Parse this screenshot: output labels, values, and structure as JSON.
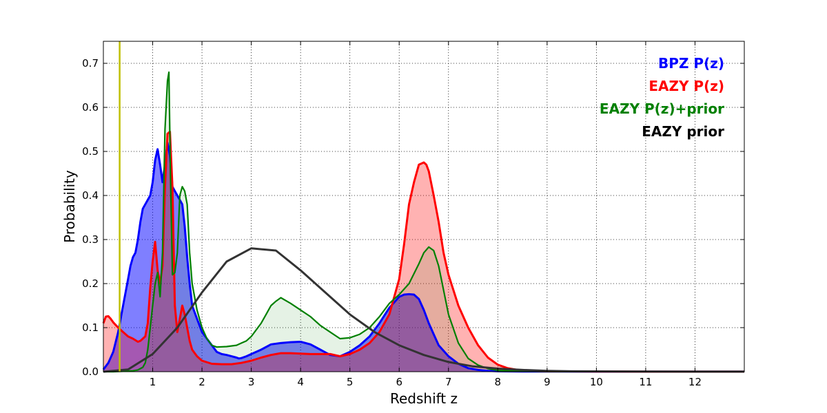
{
  "chart_data": {
    "type": "line",
    "title": "",
    "xlabel": "Redshift z",
    "ylabel": "Probability",
    "xlim": [
      0,
      13
    ],
    "ylim": [
      0,
      0.75
    ],
    "xticks": [
      1,
      2,
      3,
      4,
      5,
      6,
      7,
      8,
      9,
      10,
      11,
      12
    ],
    "xtick_labels": [
      "1",
      "2",
      "3",
      "4",
      "5",
      "6",
      "7",
      "8",
      "9",
      "10",
      "11",
      "12"
    ],
    "yticks": [
      0.0,
      0.1,
      0.2,
      0.3,
      0.4,
      0.5,
      0.6,
      0.7
    ],
    "ytick_labels": [
      "0.0",
      "0.1",
      "0.2",
      "0.3",
      "0.4",
      "0.5",
      "0.6",
      "0.7"
    ],
    "grid": true,
    "legend_position": "top-right",
    "vertical_line": {
      "x": 0.33,
      "color": "#bfbf00"
    },
    "series": [
      {
        "name": "BPZ P(z)",
        "color": "#0000ff",
        "fill": "rgba(0,0,255,0.5)",
        "filled": true,
        "x": [
          0.0,
          0.1,
          0.2,
          0.3,
          0.4,
          0.5,
          0.55,
          0.6,
          0.65,
          0.7,
          0.75,
          0.8,
          0.85,
          0.9,
          0.95,
          1.0,
          1.05,
          1.1,
          1.15,
          1.2,
          1.25,
          1.3,
          1.35,
          1.4,
          1.45,
          1.5,
          1.55,
          1.6,
          1.65,
          1.7,
          1.75,
          1.8,
          1.9,
          2.0,
          2.1,
          2.2,
          2.3,
          2.4,
          2.5,
          2.6,
          2.7,
          2.75,
          2.8,
          2.9,
          3.0,
          3.2,
          3.4,
          3.6,
          3.8,
          4.0,
          4.2,
          4.4,
          4.6,
          4.8,
          5.0,
          5.2,
          5.4,
          5.6,
          5.8,
          6.0,
          6.1,
          6.2,
          6.3,
          6.4,
          6.5,
          6.6,
          6.7,
          6.8,
          7.0,
          7.2,
          7.4,
          7.6,
          7.8,
          8.0,
          8.5,
          9.0,
          10.0,
          11.0,
          12.0,
          13.0
        ],
        "y": [
          0.005,
          0.02,
          0.045,
          0.09,
          0.15,
          0.21,
          0.24,
          0.26,
          0.27,
          0.3,
          0.34,
          0.37,
          0.38,
          0.39,
          0.4,
          0.43,
          0.48,
          0.505,
          0.47,
          0.43,
          0.47,
          0.52,
          0.49,
          0.42,
          0.41,
          0.4,
          0.39,
          0.38,
          0.33,
          0.26,
          0.2,
          0.15,
          0.12,
          0.09,
          0.075,
          0.06,
          0.045,
          0.04,
          0.038,
          0.035,
          0.032,
          0.03,
          0.031,
          0.035,
          0.04,
          0.05,
          0.062,
          0.065,
          0.067,
          0.068,
          0.062,
          0.05,
          0.038,
          0.035,
          0.045,
          0.06,
          0.08,
          0.11,
          0.145,
          0.17,
          0.175,
          0.176,
          0.175,
          0.165,
          0.14,
          0.11,
          0.085,
          0.06,
          0.035,
          0.018,
          0.008,
          0.004,
          0.002,
          0.001,
          0.0005,
          0.0003,
          0.0001,
          0.0001,
          0.0001,
          0.0001
        ]
      },
      {
        "name": "EAZY P(z)",
        "color": "#ff0000",
        "fill": "rgba(255,0,0,0.3)",
        "filled": true,
        "x": [
          0.0,
          0.05,
          0.1,
          0.15,
          0.2,
          0.3,
          0.4,
          0.5,
          0.6,
          0.7,
          0.75,
          0.8,
          0.85,
          0.9,
          0.95,
          1.0,
          1.05,
          1.1,
          1.15,
          1.2,
          1.25,
          1.3,
          1.35,
          1.4,
          1.45,
          1.5,
          1.55,
          1.6,
          1.65,
          1.7,
          1.75,
          1.8,
          1.9,
          2.0,
          2.2,
          2.4,
          2.6,
          2.8,
          3.0,
          3.2,
          3.4,
          3.6,
          3.8,
          4.0,
          4.2,
          4.4,
          4.6,
          4.8,
          5.0,
          5.2,
          5.4,
          5.6,
          5.8,
          6.0,
          6.1,
          6.2,
          6.3,
          6.4,
          6.5,
          6.55,
          6.6,
          6.7,
          6.8,
          6.9,
          7.0,
          7.2,
          7.4,
          7.6,
          7.8,
          8.0,
          8.2,
          8.4,
          8.6,
          9.0,
          10.0,
          11.0,
          12.0,
          13.0
        ],
        "y": [
          0.11,
          0.125,
          0.126,
          0.12,
          0.112,
          0.1,
          0.09,
          0.08,
          0.075,
          0.068,
          0.07,
          0.075,
          0.08,
          0.11,
          0.19,
          0.25,
          0.295,
          0.23,
          0.2,
          0.24,
          0.42,
          0.54,
          0.545,
          0.42,
          0.15,
          0.09,
          0.12,
          0.15,
          0.13,
          0.1,
          0.07,
          0.05,
          0.035,
          0.025,
          0.018,
          0.017,
          0.017,
          0.02,
          0.025,
          0.032,
          0.038,
          0.042,
          0.042,
          0.041,
          0.04,
          0.04,
          0.04,
          0.035,
          0.04,
          0.05,
          0.065,
          0.09,
          0.13,
          0.21,
          0.29,
          0.38,
          0.43,
          0.47,
          0.475,
          0.47,
          0.455,
          0.4,
          0.34,
          0.27,
          0.22,
          0.15,
          0.1,
          0.06,
          0.032,
          0.016,
          0.008,
          0.004,
          0.002,
          0.001,
          0.0005,
          0.0002,
          0.0001,
          0.0001
        ]
      },
      {
        "name": "EAZY P(z)+prior",
        "color": "#008000",
        "fill": "rgba(0,128,0,0.1)",
        "filled": true,
        "x": [
          0.0,
          0.2,
          0.4,
          0.6,
          0.7,
          0.8,
          0.85,
          0.9,
          0.95,
          1.0,
          1.05,
          1.1,
          1.15,
          1.2,
          1.25,
          1.3,
          1.33,
          1.36,
          1.4,
          1.45,
          1.5,
          1.55,
          1.6,
          1.65,
          1.7,
          1.75,
          1.8,
          1.9,
          2.0,
          2.1,
          2.2,
          2.3,
          2.5,
          2.7,
          2.8,
          2.9,
          3.0,
          3.1,
          3.2,
          3.3,
          3.4,
          3.5,
          3.6,
          3.8,
          4.0,
          4.2,
          4.4,
          4.6,
          4.8,
          5.0,
          5.2,
          5.4,
          5.6,
          5.8,
          6.0,
          6.2,
          6.4,
          6.5,
          6.6,
          6.7,
          6.8,
          7.0,
          7.2,
          7.4,
          7.6,
          7.8,
          8.0,
          8.5,
          9.0,
          10.0,
          11.0,
          12.0,
          13.0
        ],
        "y": [
          0.0,
          0.0,
          0.001,
          0.002,
          0.004,
          0.01,
          0.02,
          0.05,
          0.1,
          0.15,
          0.2,
          0.225,
          0.17,
          0.27,
          0.55,
          0.66,
          0.68,
          0.45,
          0.22,
          0.225,
          0.27,
          0.4,
          0.42,
          0.41,
          0.38,
          0.27,
          0.2,
          0.14,
          0.1,
          0.075,
          0.06,
          0.056,
          0.057,
          0.06,
          0.065,
          0.07,
          0.08,
          0.095,
          0.11,
          0.13,
          0.15,
          0.16,
          0.168,
          0.155,
          0.14,
          0.125,
          0.105,
          0.09,
          0.075,
          0.077,
          0.085,
          0.1,
          0.125,
          0.155,
          0.175,
          0.2,
          0.245,
          0.27,
          0.283,
          0.275,
          0.24,
          0.13,
          0.065,
          0.03,
          0.015,
          0.007,
          0.003,
          0.001,
          0.0005,
          0.0002,
          0.0001,
          0.0001,
          0.0001
        ]
      },
      {
        "name": "EAZY prior",
        "color": "#333333",
        "fill": "none",
        "filled": false,
        "x": [
          0.0,
          0.5,
          1.0,
          1.5,
          2.0,
          2.5,
          3.0,
          3.5,
          4.0,
          4.5,
          5.0,
          5.5,
          6.0,
          6.5,
          7.0,
          7.5,
          8.0,
          8.5,
          9.0,
          9.5,
          10.0,
          11.0,
          12.0,
          13.0
        ],
        "y": [
          0.0,
          0.005,
          0.04,
          0.1,
          0.18,
          0.25,
          0.28,
          0.275,
          0.23,
          0.18,
          0.13,
          0.09,
          0.06,
          0.038,
          0.022,
          0.012,
          0.007,
          0.004,
          0.002,
          0.001,
          0.0008,
          0.0004,
          0.0002,
          0.0001
        ]
      }
    ]
  }
}
